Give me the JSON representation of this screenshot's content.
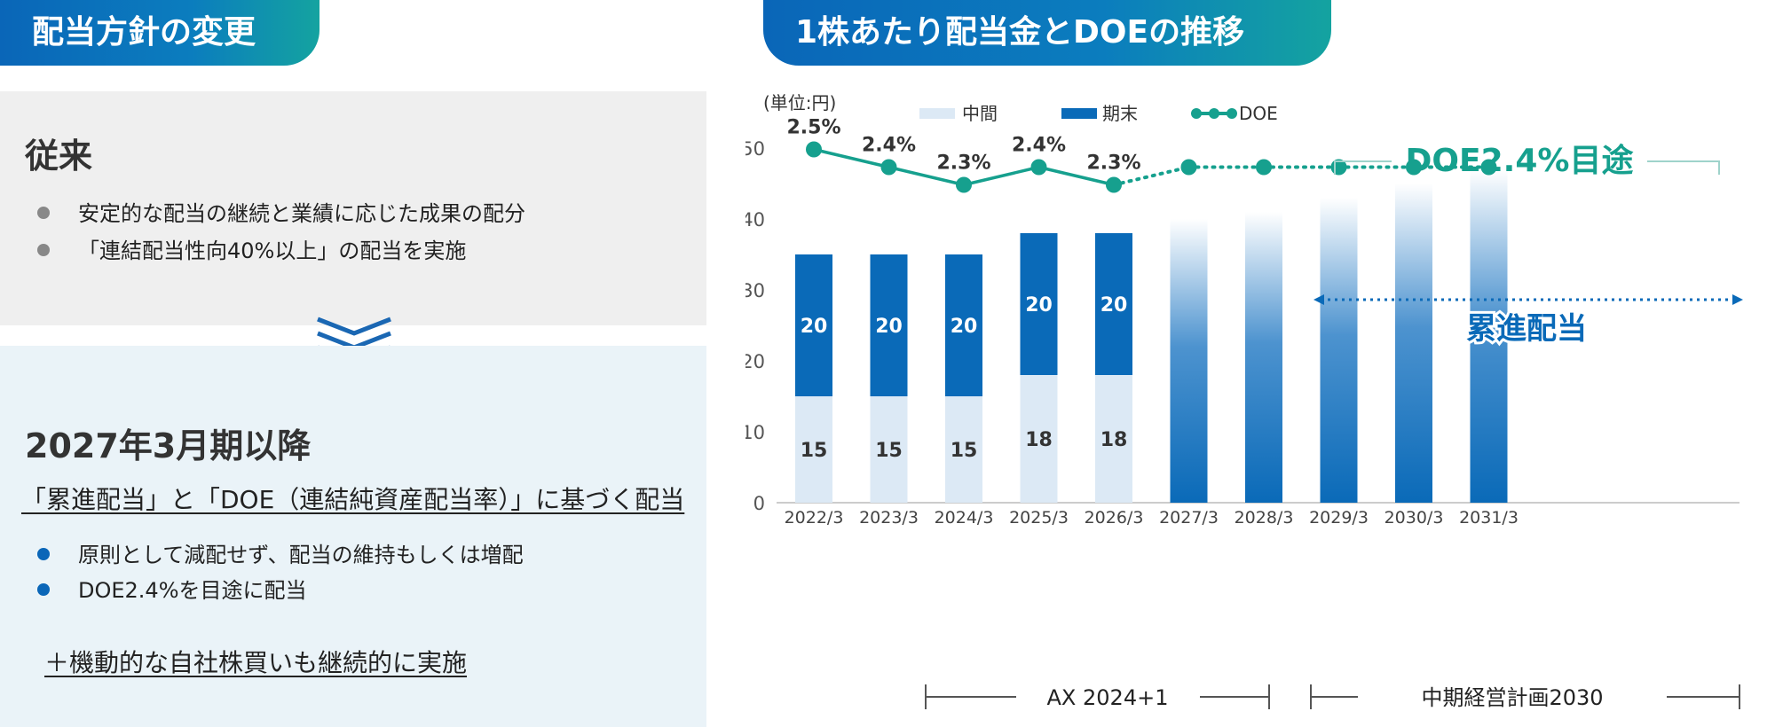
{
  "left": {
    "header": "配当方針の変更",
    "old_policy": {
      "title": "従来",
      "bullets": [
        "安定的な配当の継続と業績に応じた成果の配分",
        "「連結配当性向40%以上」の配当を実施"
      ]
    },
    "new_policy": {
      "title": "2027年3月期以降",
      "subtitle": "「累進配当」と「DOE（連結純資産配当率）」に基づく配当",
      "bullets": [
        "原則として減配せず、配当の維持もしくは増配",
        "DOE2.4%を目途に配当"
      ],
      "note": "＋機動的な自社株買いも継続的に実施"
    },
    "colors": {
      "old_bullet": "#888888",
      "new_bullet": "#0a66b8"
    }
  },
  "right": {
    "header": "1株あたり配当金とDOEの推移",
    "unit_label": "(単位:円)",
    "legend": [
      "中間",
      "期末",
      "DOE"
    ],
    "doe_target_label": "DOE2.4%目途",
    "progressive_label": "累進配当",
    "period_groups": [
      "AX 2024+1",
      "中期経営計画2030"
    ]
  },
  "chart_data": {
    "type": "bar",
    "stacked": true,
    "categories": [
      "2022/3",
      "2023/3",
      "2024/3",
      "2025/3",
      "2026/3",
      "2027/3",
      "2028/3",
      "2029/3",
      "2030/3",
      "2031/3"
    ],
    "series": [
      {
        "name": "中間",
        "values": [
          15,
          15,
          15,
          18,
          18,
          null,
          null,
          null,
          null,
          null
        ],
        "color": "#dce9f5"
      },
      {
        "name": "期末",
        "values": [
          20,
          20,
          20,
          20,
          20,
          null,
          null,
          null,
          null,
          null
        ],
        "color": "#0a6ab8"
      }
    ],
    "projected_bar_heights": [
      40,
      41,
      43,
      45,
      47
    ],
    "doe": {
      "name": "DOE",
      "labels": [
        "2.5%",
        "2.4%",
        "2.3%",
        "2.4%",
        "2.3%"
      ],
      "values": [
        2.5,
        2.4,
        2.3,
        2.4,
        2.3,
        2.4,
        2.4,
        2.4,
        2.4,
        2.4
      ],
      "color": "#16a08e"
    },
    "yticks": [
      0,
      10,
      20,
      30,
      40,
      50
    ],
    "ylim": [
      0,
      55
    ],
    "xlabel": "",
    "ylabel": "",
    "grid": false,
    "legend_position": "top"
  }
}
